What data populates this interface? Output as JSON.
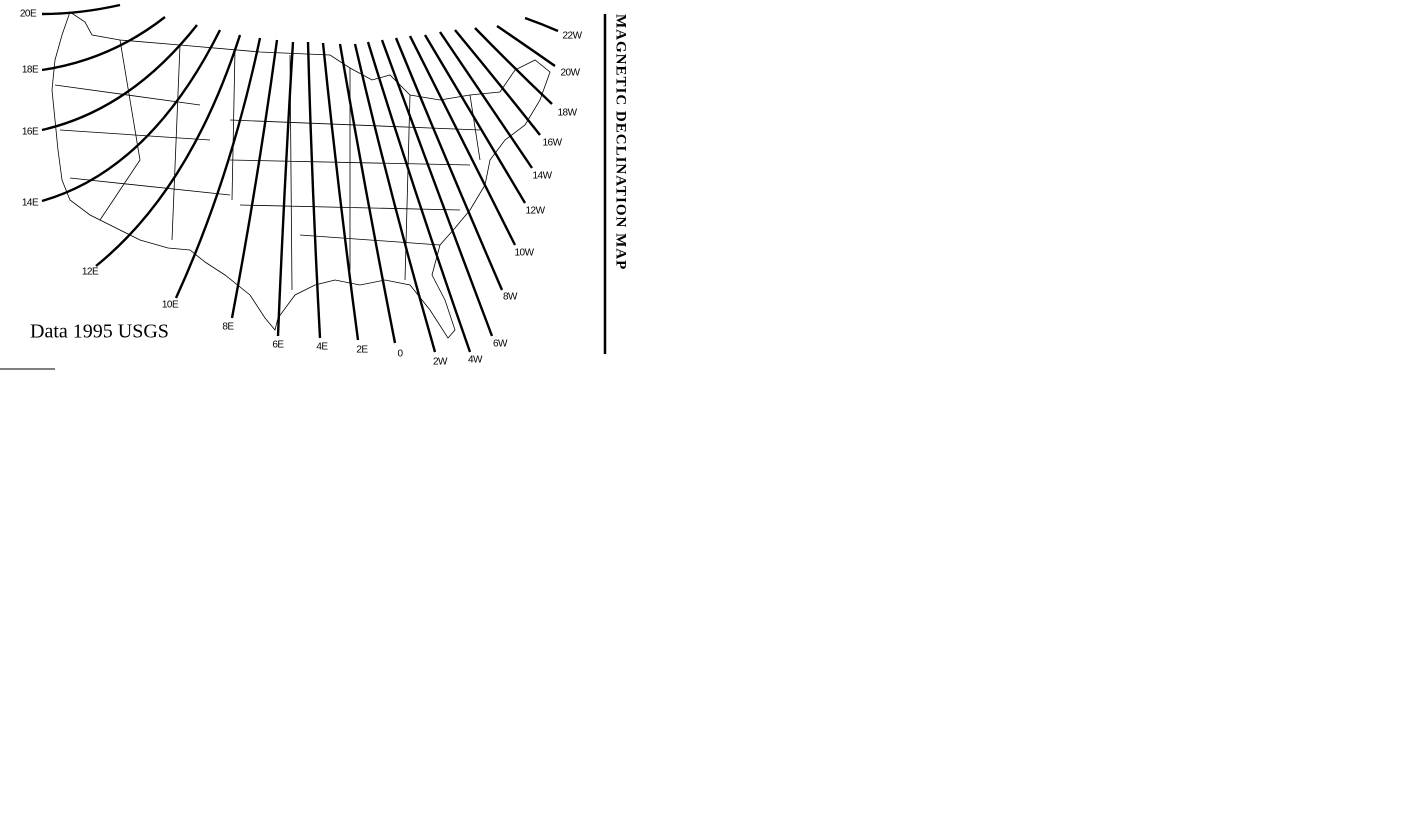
{
  "title": "MAGNETIC DECLINATION MAP",
  "credit": "Data 1995 USGS",
  "isogonic_lines": [
    {
      "label": "20E"
    },
    {
      "label": "18E"
    },
    {
      "label": "16E"
    },
    {
      "label": "14E"
    },
    {
      "label": "12E"
    },
    {
      "label": "10E"
    },
    {
      "label": "8E"
    },
    {
      "label": "6E"
    },
    {
      "label": "4E"
    },
    {
      "label": "2E"
    },
    {
      "label": "0"
    },
    {
      "label": "2W"
    },
    {
      "label": "4W"
    },
    {
      "label": "6W"
    },
    {
      "label": "8W"
    },
    {
      "label": "10W"
    },
    {
      "label": "12W"
    },
    {
      "label": "14W"
    },
    {
      "label": "16W"
    },
    {
      "label": "18W"
    },
    {
      "label": "20W"
    },
    {
      "label": "22W"
    }
  ]
}
